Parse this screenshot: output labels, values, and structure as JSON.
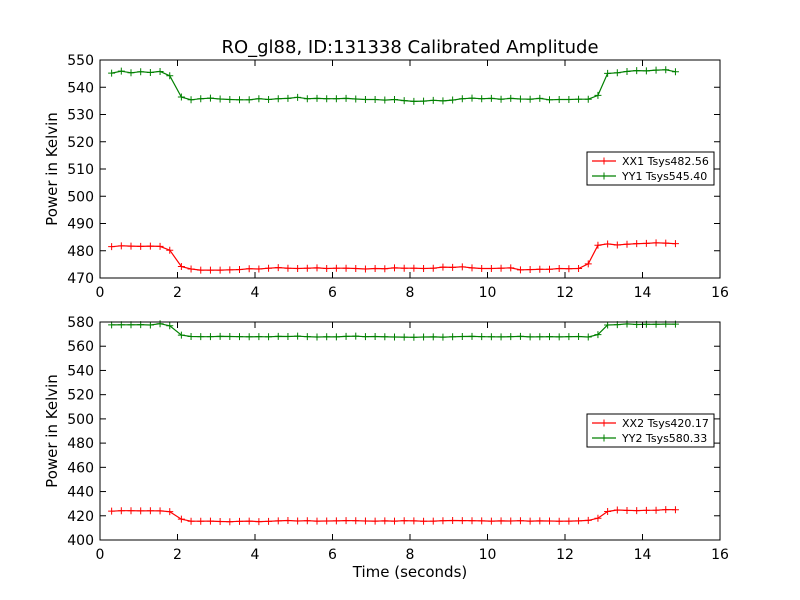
{
  "figure": {
    "title": "RO_gl88, ID:131338 Calibrated Amplitude"
  },
  "chart_data": [
    {
      "type": "line",
      "title": "RO_gl88, ID:131338 Calibrated Amplitude",
      "xlabel": "",
      "ylabel": "Power in Kelvin",
      "xlim": [
        0,
        16
      ],
      "ylim": [
        470,
        550
      ],
      "xticks": [
        0,
        2,
        4,
        6,
        8,
        10,
        12,
        14,
        16
      ],
      "yticks": [
        470,
        480,
        490,
        500,
        510,
        520,
        530,
        540,
        550
      ],
      "grid": false,
      "legend": "right",
      "x": [
        0.3,
        0.55,
        0.8,
        1.05,
        1.3,
        1.55,
        1.8,
        2.1,
        2.35,
        2.6,
        2.85,
        3.1,
        3.35,
        3.6,
        3.85,
        4.1,
        4.35,
        4.6,
        4.85,
        5.1,
        5.35,
        5.6,
        5.85,
        6.1,
        6.35,
        6.6,
        6.85,
        7.1,
        7.35,
        7.6,
        7.85,
        8.1,
        8.35,
        8.6,
        8.85,
        9.1,
        9.35,
        9.6,
        9.85,
        10.1,
        10.35,
        10.6,
        10.85,
        11.1,
        11.35,
        11.6,
        11.85,
        12.1,
        12.35,
        12.6,
        12.85,
        13.1,
        13.35,
        13.6,
        13.85,
        14.1,
        14.35,
        14.6,
        14.85
      ],
      "series": [
        {
          "name": "XX1 Tsys482.56",
          "color": "#ff0000",
          "values": [
            481.5,
            481.8,
            481.7,
            481.6,
            481.7,
            481.6,
            480.2,
            474.2,
            473.3,
            472.9,
            472.9,
            472.9,
            473.0,
            473.1,
            473.4,
            473.3,
            473.6,
            473.8,
            473.6,
            473.5,
            473.6,
            473.7,
            473.5,
            473.6,
            473.6,
            473.5,
            473.3,
            473.5,
            473.4,
            473.7,
            473.6,
            473.6,
            473.5,
            473.6,
            474.0,
            473.9,
            474.1,
            473.7,
            473.5,
            473.5,
            473.6,
            473.7,
            473.0,
            473.1,
            473.2,
            473.2,
            473.5,
            473.4,
            473.5,
            475.2,
            482.0,
            482.5,
            482.1,
            482.4,
            482.6,
            482.7,
            482.9,
            482.8,
            482.6
          ]
        },
        {
          "name": "YY1 Tsys545.40",
          "color": "#008000",
          "values": [
            545.2,
            545.9,
            545.3,
            545.7,
            545.4,
            545.8,
            544.2,
            536.4,
            535.4,
            535.8,
            536.0,
            535.7,
            535.5,
            535.4,
            535.4,
            535.8,
            535.5,
            535.8,
            535.9,
            536.3,
            535.8,
            535.9,
            535.8,
            535.8,
            535.9,
            535.7,
            535.5,
            535.5,
            535.3,
            535.5,
            535.1,
            534.8,
            534.9,
            535.2,
            535.0,
            535.3,
            535.8,
            536.0,
            535.8,
            535.9,
            535.6,
            535.9,
            535.7,
            535.6,
            535.9,
            535.4,
            535.5,
            535.5,
            535.6,
            535.6,
            537.0,
            545.1,
            545.3,
            545.8,
            546.1,
            546.0,
            546.3,
            546.4,
            545.7
          ]
        }
      ]
    },
    {
      "type": "line",
      "title": "",
      "xlabel": "Time (seconds)",
      "ylabel": "Power in Kelvin",
      "xlim": [
        0,
        16
      ],
      "ylim": [
        400,
        580
      ],
      "xticks": [
        0,
        2,
        4,
        6,
        8,
        10,
        12,
        14,
        16
      ],
      "yticks": [
        400,
        420,
        440,
        460,
        480,
        500,
        520,
        540,
        560,
        580
      ],
      "grid": false,
      "legend": "right",
      "x": [
        0.3,
        0.55,
        0.8,
        1.05,
        1.3,
        1.55,
        1.8,
        2.1,
        2.35,
        2.6,
        2.85,
        3.1,
        3.35,
        3.6,
        3.85,
        4.1,
        4.35,
        4.6,
        4.85,
        5.1,
        5.35,
        5.6,
        5.85,
        6.1,
        6.35,
        6.6,
        6.85,
        7.1,
        7.35,
        7.6,
        7.85,
        8.1,
        8.35,
        8.6,
        8.85,
        9.1,
        9.35,
        9.6,
        9.85,
        10.1,
        10.35,
        10.6,
        10.85,
        11.1,
        11.35,
        11.6,
        11.85,
        12.1,
        12.35,
        12.6,
        12.85,
        13.1,
        13.35,
        13.6,
        13.85,
        14.1,
        14.35,
        14.6,
        14.85
      ],
      "series": [
        {
          "name": "XX2 Tsys420.17",
          "color": "#ff0000",
          "values": [
            423.8,
            424.2,
            424.2,
            424.0,
            424.1,
            424.0,
            423.4,
            417.2,
            415.5,
            415.5,
            415.6,
            415.3,
            415.1,
            415.4,
            415.6,
            415.2,
            415.4,
            415.8,
            416.1,
            415.7,
            415.9,
            415.6,
            415.7,
            415.8,
            416.0,
            415.9,
            415.7,
            415.6,
            415.8,
            415.6,
            415.9,
            415.8,
            415.5,
            415.6,
            415.9,
            416.1,
            416.0,
            415.9,
            415.8,
            415.6,
            415.8,
            415.7,
            415.9,
            415.6,
            415.8,
            415.7,
            415.5,
            415.6,
            415.8,
            416.2,
            418.0,
            423.5,
            424.8,
            424.4,
            424.3,
            424.5,
            424.6,
            425.1,
            425.0
          ]
        },
        {
          "name": "YY2 Tsys580.33",
          "color": "#008000",
          "values": [
            577.6,
            577.7,
            577.7,
            577.8,
            577.5,
            578.6,
            576.9,
            569.2,
            568.0,
            567.9,
            567.9,
            568.1,
            568.0,
            567.9,
            567.8,
            567.9,
            567.8,
            568.1,
            568.0,
            568.3,
            567.9,
            567.6,
            567.8,
            567.7,
            568.1,
            568.3,
            567.9,
            568.0,
            567.8,
            567.6,
            567.5,
            567.4,
            567.6,
            567.7,
            567.5,
            567.8,
            568.0,
            568.1,
            567.9,
            567.8,
            567.7,
            567.9,
            568.1,
            567.7,
            567.8,
            567.9,
            567.7,
            567.9,
            568.0,
            567.6,
            569.6,
            577.5,
            577.8,
            578.4,
            577.9,
            578.1,
            578.1,
            578.3,
            578.2
          ]
        }
      ]
    }
  ]
}
